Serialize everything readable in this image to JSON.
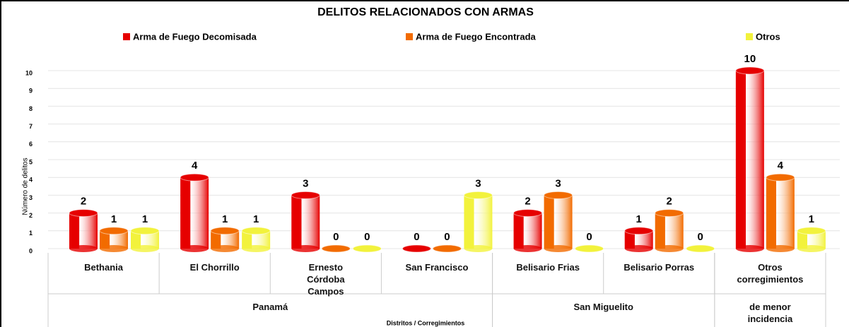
{
  "chart_data": {
    "type": "bar",
    "title": "DELITOS RELACIONADOS CON ARMAS",
    "categories": [
      "Bethania",
      "El Chorrillo",
      "Ernesto\nCórdoba\nCampos",
      "San Francisco",
      "Belisario Frias",
      "Belisario Porras",
      "Otros\ncorregimientos"
    ],
    "groups": [
      {
        "label": "Panamá",
        "span": 4
      },
      {
        "label": "San Miguelito",
        "span": 2
      },
      {
        "label": "de menor\nincidencia",
        "span": 1
      }
    ],
    "series": [
      {
        "name": "Arma de Fuego Decomisada",
        "color": "#e60000",
        "values": [
          2,
          4,
          3,
          0,
          2,
          1,
          10
        ]
      },
      {
        "name": "Arma de Fuego Encontrada",
        "color": "#f26b00",
        "values": [
          1,
          1,
          0,
          0,
          3,
          2,
          4
        ]
      },
      {
        "name": "Otros",
        "color": "#f2f23c",
        "values": [
          1,
          1,
          0,
          3,
          0,
          0,
          1
        ]
      }
    ],
    "y_label": "Número de delitos",
    "x_label": "Distritos / Corregimientos",
    "ylim": [
      0,
      10
    ],
    "yticks": [
      0,
      1,
      2,
      3,
      4,
      5,
      6,
      7,
      8,
      9,
      10
    ],
    "grid": true
  }
}
